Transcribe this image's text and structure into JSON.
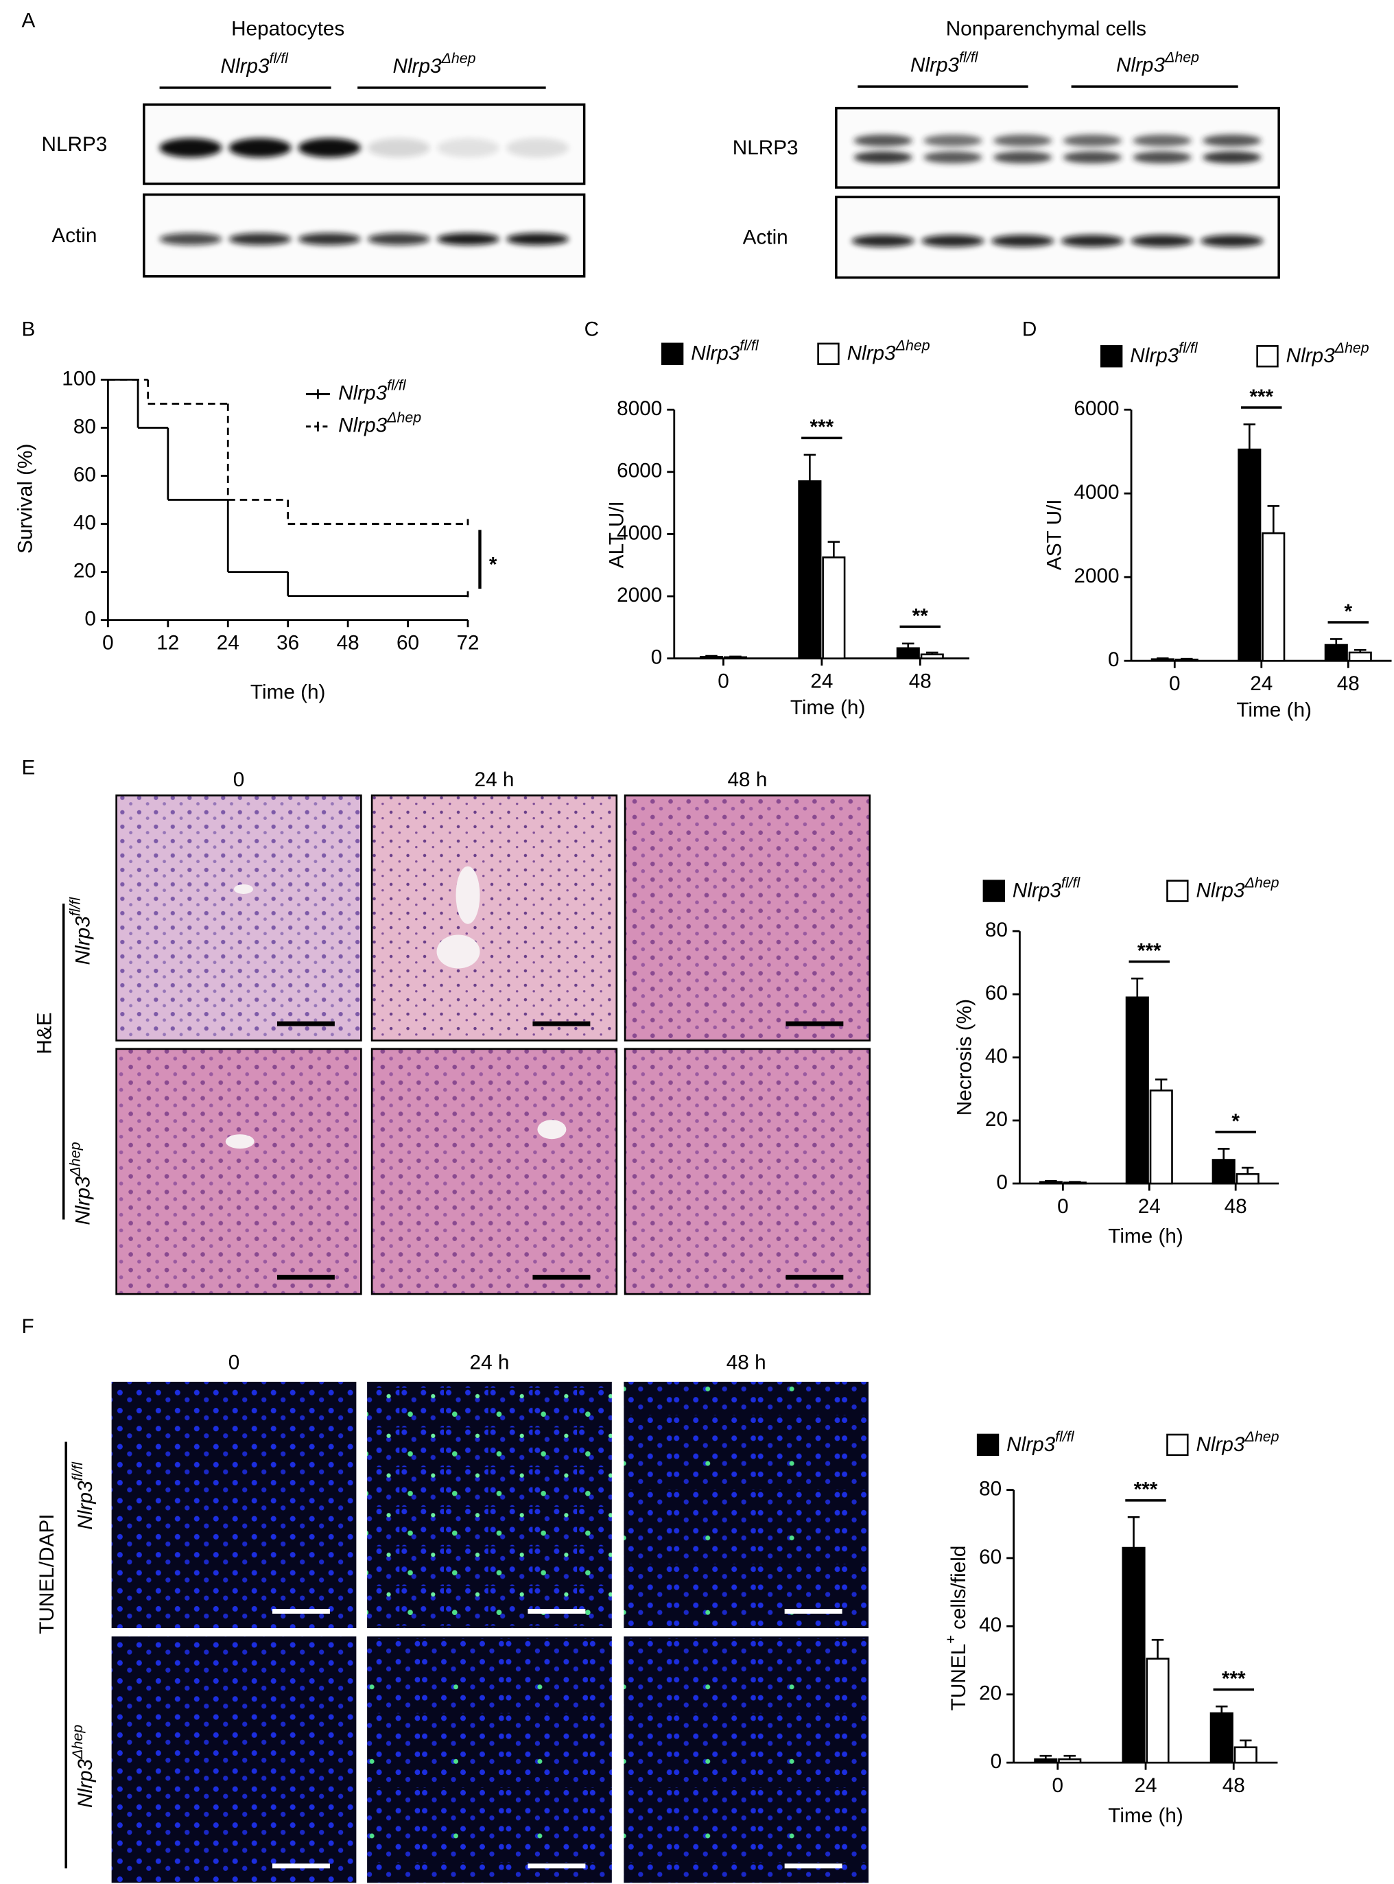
{
  "panel_labels": [
    "A",
    "B",
    "C",
    "D",
    "E",
    "F"
  ],
  "blots": [
    {
      "title": "Hepatocytes",
      "groups": [
        {
          "name": "Nlrp3",
          "superscript": "fl/fl"
        },
        {
          "name": "Nlrp3",
          "superscript": "Δhep"
        }
      ],
      "rows": [
        "NLRP3",
        "Actin"
      ]
    },
    {
      "title": "Nonparenchymal cells",
      "groups": [
        {
          "name": "Nlrp3",
          "superscript": "fl/fl"
        },
        {
          "name": "Nlrp3",
          "superscript": "Δhep"
        }
      ],
      "rows": [
        "NLRP3",
        "Actin"
      ]
    }
  ],
  "micrographs": [
    {
      "columns": [
        "0",
        "24 h",
        "48 h"
      ],
      "stain": "H&E",
      "rows": [
        {
          "name": "Nlrp3",
          "superscript": "fl/fl"
        },
        {
          "name": "Nlrp3",
          "superscript": "Δhep"
        }
      ]
    },
    {
      "columns": [
        "0",
        "24 h",
        "48 h"
      ],
      "stain": "TUNEL/DAPI",
      "rows": [
        {
          "name": "Nlrp3",
          "superscript": "fl/fl"
        },
        {
          "name": "Nlrp3",
          "superscript": "Δhep"
        }
      ]
    }
  ],
  "chart_data": [
    {
      "type": "line",
      "xlabel": "Time (h)",
      "ylabel": "Survival (%)",
      "xlim": [
        0,
        72
      ],
      "ylim": [
        0,
        100
      ],
      "xticks": [
        0,
        12,
        24,
        36,
        48,
        60,
        72
      ],
      "yticks": [
        0,
        20,
        40,
        60,
        80,
        100
      ],
      "series": [
        {
          "name": "Nlrp3",
          "name_superscript": "fl/fl",
          "color": "#000000",
          "line_style": "solid",
          "x": [
            0,
            6,
            12,
            24,
            36,
            72
          ],
          "values": [
            100,
            80,
            50,
            20,
            10,
            10
          ]
        },
        {
          "name": "Nlrp3",
          "name_superscript": "Δhep",
          "color": "#000000",
          "line_style": "dashed",
          "x": [
            0,
            8,
            24,
            36,
            72
          ],
          "values": [
            100,
            90,
            50,
            40,
            40
          ]
        }
      ],
      "annotation": "*"
    },
    {
      "type": "bar",
      "xlabel": "Time (h)",
      "ylabel": "ALT U/I",
      "categories": [
        "0",
        "24",
        "48"
      ],
      "ylim": [
        0,
        8000
      ],
      "yticks": [
        0,
        2000,
        4000,
        6000,
        8000
      ],
      "series": [
        {
          "name": "Nlrp3",
          "name_superscript": "fl/fl",
          "color": "#000000",
          "values": [
            50,
            5700,
            330
          ],
          "errors": [
            30,
            850,
            150
          ]
        },
        {
          "name": "Nlrp3",
          "name_superscript": "Δhep",
          "color": "#ffffff",
          "values": [
            40,
            3250,
            130
          ],
          "errors": [
            20,
            500,
            60
          ]
        }
      ],
      "annotations": [
        null,
        "***",
        "**"
      ]
    },
    {
      "type": "bar",
      "xlabel": "Time (h)",
      "ylabel": "AST U/I",
      "categories": [
        "0",
        "24",
        "48"
      ],
      "ylim": [
        0,
        6000
      ],
      "yticks": [
        0,
        2000,
        4000,
        6000
      ],
      "series": [
        {
          "name": "Nlrp3",
          "name_superscript": "fl/fl",
          "color": "#000000",
          "values": [
            40,
            5050,
            380
          ],
          "errors": [
            20,
            600,
            140
          ]
        },
        {
          "name": "Nlrp3",
          "name_superscript": "Δhep",
          "color": "#ffffff",
          "values": [
            30,
            3050,
            200
          ],
          "errors": [
            20,
            650,
            60
          ]
        }
      ],
      "annotations": [
        null,
        "***",
        "*"
      ]
    },
    {
      "type": "bar",
      "xlabel": "Time (h)",
      "ylabel": "Necrosis (%)",
      "categories": [
        "0",
        "24",
        "48"
      ],
      "ylim": [
        0,
        80
      ],
      "yticks": [
        0,
        20,
        40,
        60,
        80
      ],
      "series": [
        {
          "name": "Nlrp3",
          "name_superscript": "fl/fl",
          "color": "#000000",
          "values": [
            0.5,
            59,
            7.5
          ],
          "errors": [
            0.3,
            6,
            3.5
          ]
        },
        {
          "name": "Nlrp3",
          "name_superscript": "Δhep",
          "color": "#ffffff",
          "values": [
            0.3,
            29.5,
            3
          ],
          "errors": [
            0.2,
            3.5,
            2
          ]
        }
      ],
      "annotations": [
        null,
        "***",
        "*"
      ]
    },
    {
      "type": "bar",
      "xlabel": "Time (h)",
      "ylabel": "TUNEL",
      "ylabel_superscript": "+",
      "ylabel_rest": " cells/field",
      "categories": [
        "0",
        "24",
        "48"
      ],
      "ylim": [
        0,
        80
      ],
      "yticks": [
        0,
        20,
        40,
        60,
        80
      ],
      "series": [
        {
          "name": "Nlrp3",
          "name_superscript": "fl/fl",
          "color": "#000000",
          "values": [
            1,
            63,
            14.5
          ],
          "errors": [
            1,
            9,
            2
          ]
        },
        {
          "name": "Nlrp3",
          "name_superscript": "Δhep",
          "color": "#ffffff",
          "values": [
            1,
            30.5,
            4.5
          ],
          "errors": [
            1,
            5.5,
            2
          ]
        }
      ],
      "annotations": [
        null,
        "***",
        "***"
      ]
    }
  ]
}
